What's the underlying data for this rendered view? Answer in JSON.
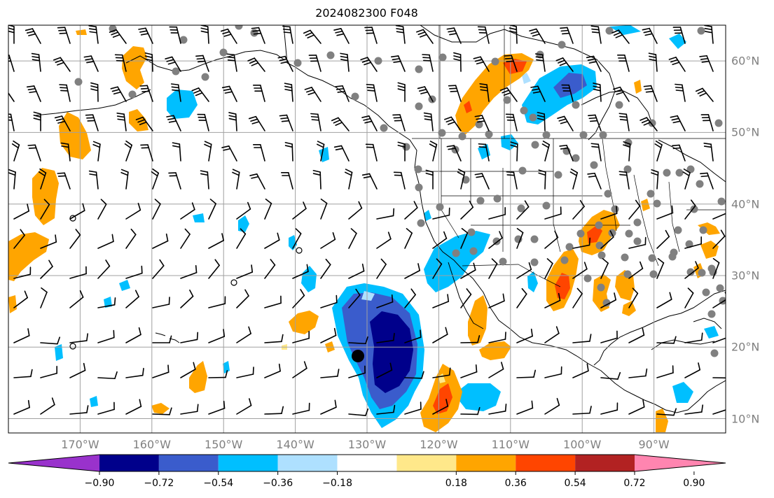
{
  "map": {
    "title": "2024082300 F048",
    "lon_labels": [
      "170°W",
      "160°W",
      "150°W",
      "140°W",
      "130°W",
      "120°W",
      "110°W",
      "100°W",
      "90°W"
    ],
    "lat_labels": [
      "60°N",
      "50°N",
      "40°N",
      "30°N",
      "20°N",
      "10°N"
    ],
    "extent": {
      "lon": [
        -180,
        -80
      ],
      "lat": [
        8,
        65
      ]
    },
    "projection": "equirectangular",
    "gridlines": true,
    "gridline_color": "#a0a0a0",
    "land_outline_color": "#000000",
    "wind_barbs": true,
    "station_marker_color": "#808080"
  },
  "colorbar": {
    "tick_labels": [
      "−0.90",
      "−0.72",
      "−0.54",
      "−0.36",
      "−0.18",
      "0.18",
      "0.36",
      "0.54",
      "0.72",
      "0.90"
    ],
    "levels": [
      -0.9,
      -0.72,
      -0.54,
      -0.36,
      -0.18,
      0.18,
      0.36,
      0.54,
      0.72,
      0.9
    ],
    "colors": [
      "#9932cc",
      "#00008b",
      "#3a5ccc",
      "#00bfff",
      "#aee0ff",
      "#ffffff",
      "#ffe88a",
      "#ffa500",
      "#ff4500",
      "#b22222",
      "#ff85b0"
    ],
    "extend": "both"
  }
}
